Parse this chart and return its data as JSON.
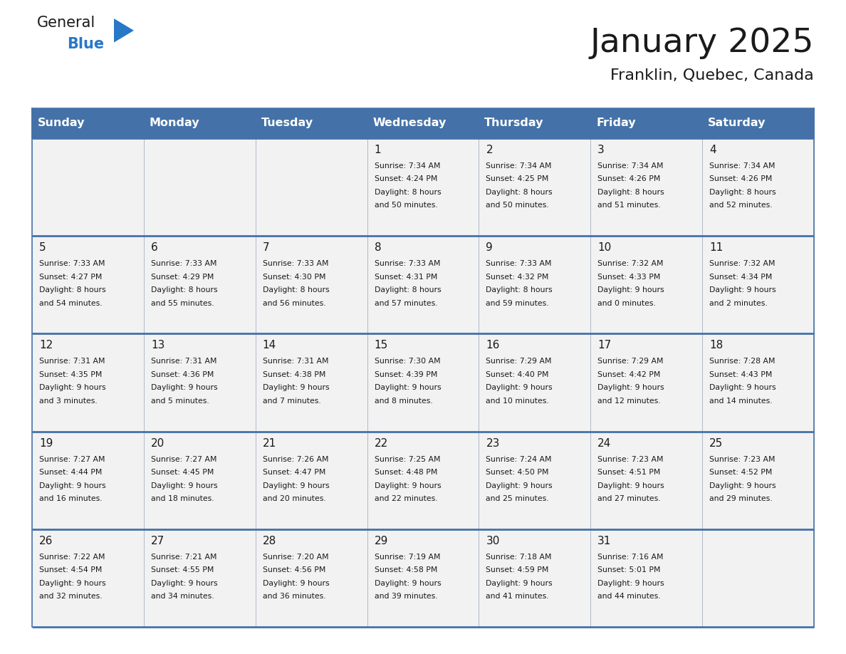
{
  "title": "January 2025",
  "subtitle": "Franklin, Quebec, Canada",
  "header_bg": "#4472a8",
  "cell_bg": "#f2f2f2",
  "row_top_line": "#4472a8",
  "col_sep_color": "#c0c0c0",
  "day_names": [
    "Sunday",
    "Monday",
    "Tuesday",
    "Wednesday",
    "Thursday",
    "Friday",
    "Saturday"
  ],
  "calendar": [
    [
      {
        "day": "",
        "info": ""
      },
      {
        "day": "",
        "info": ""
      },
      {
        "day": "",
        "info": ""
      },
      {
        "day": "1",
        "info": "Sunrise: 7:34 AM\nSunset: 4:24 PM\nDaylight: 8 hours\nand 50 minutes."
      },
      {
        "day": "2",
        "info": "Sunrise: 7:34 AM\nSunset: 4:25 PM\nDaylight: 8 hours\nand 50 minutes."
      },
      {
        "day": "3",
        "info": "Sunrise: 7:34 AM\nSunset: 4:26 PM\nDaylight: 8 hours\nand 51 minutes."
      },
      {
        "day": "4",
        "info": "Sunrise: 7:34 AM\nSunset: 4:26 PM\nDaylight: 8 hours\nand 52 minutes."
      }
    ],
    [
      {
        "day": "5",
        "info": "Sunrise: 7:33 AM\nSunset: 4:27 PM\nDaylight: 8 hours\nand 54 minutes."
      },
      {
        "day": "6",
        "info": "Sunrise: 7:33 AM\nSunset: 4:29 PM\nDaylight: 8 hours\nand 55 minutes."
      },
      {
        "day": "7",
        "info": "Sunrise: 7:33 AM\nSunset: 4:30 PM\nDaylight: 8 hours\nand 56 minutes."
      },
      {
        "day": "8",
        "info": "Sunrise: 7:33 AM\nSunset: 4:31 PM\nDaylight: 8 hours\nand 57 minutes."
      },
      {
        "day": "9",
        "info": "Sunrise: 7:33 AM\nSunset: 4:32 PM\nDaylight: 8 hours\nand 59 minutes."
      },
      {
        "day": "10",
        "info": "Sunrise: 7:32 AM\nSunset: 4:33 PM\nDaylight: 9 hours\nand 0 minutes."
      },
      {
        "day": "11",
        "info": "Sunrise: 7:32 AM\nSunset: 4:34 PM\nDaylight: 9 hours\nand 2 minutes."
      }
    ],
    [
      {
        "day": "12",
        "info": "Sunrise: 7:31 AM\nSunset: 4:35 PM\nDaylight: 9 hours\nand 3 minutes."
      },
      {
        "day": "13",
        "info": "Sunrise: 7:31 AM\nSunset: 4:36 PM\nDaylight: 9 hours\nand 5 minutes."
      },
      {
        "day": "14",
        "info": "Sunrise: 7:31 AM\nSunset: 4:38 PM\nDaylight: 9 hours\nand 7 minutes."
      },
      {
        "day": "15",
        "info": "Sunrise: 7:30 AM\nSunset: 4:39 PM\nDaylight: 9 hours\nand 8 minutes."
      },
      {
        "day": "16",
        "info": "Sunrise: 7:29 AM\nSunset: 4:40 PM\nDaylight: 9 hours\nand 10 minutes."
      },
      {
        "day": "17",
        "info": "Sunrise: 7:29 AM\nSunset: 4:42 PM\nDaylight: 9 hours\nand 12 minutes."
      },
      {
        "day": "18",
        "info": "Sunrise: 7:28 AM\nSunset: 4:43 PM\nDaylight: 9 hours\nand 14 minutes."
      }
    ],
    [
      {
        "day": "19",
        "info": "Sunrise: 7:27 AM\nSunset: 4:44 PM\nDaylight: 9 hours\nand 16 minutes."
      },
      {
        "day": "20",
        "info": "Sunrise: 7:27 AM\nSunset: 4:45 PM\nDaylight: 9 hours\nand 18 minutes."
      },
      {
        "day": "21",
        "info": "Sunrise: 7:26 AM\nSunset: 4:47 PM\nDaylight: 9 hours\nand 20 minutes."
      },
      {
        "day": "22",
        "info": "Sunrise: 7:25 AM\nSunset: 4:48 PM\nDaylight: 9 hours\nand 22 minutes."
      },
      {
        "day": "23",
        "info": "Sunrise: 7:24 AM\nSunset: 4:50 PM\nDaylight: 9 hours\nand 25 minutes."
      },
      {
        "day": "24",
        "info": "Sunrise: 7:23 AM\nSunset: 4:51 PM\nDaylight: 9 hours\nand 27 minutes."
      },
      {
        "day": "25",
        "info": "Sunrise: 7:23 AM\nSunset: 4:52 PM\nDaylight: 9 hours\nand 29 minutes."
      }
    ],
    [
      {
        "day": "26",
        "info": "Sunrise: 7:22 AM\nSunset: 4:54 PM\nDaylight: 9 hours\nand 32 minutes."
      },
      {
        "day": "27",
        "info": "Sunrise: 7:21 AM\nSunset: 4:55 PM\nDaylight: 9 hours\nand 34 minutes."
      },
      {
        "day": "28",
        "info": "Sunrise: 7:20 AM\nSunset: 4:56 PM\nDaylight: 9 hours\nand 36 minutes."
      },
      {
        "day": "29",
        "info": "Sunrise: 7:19 AM\nSunset: 4:58 PM\nDaylight: 9 hours\nand 39 minutes."
      },
      {
        "day": "30",
        "info": "Sunrise: 7:18 AM\nSunset: 4:59 PM\nDaylight: 9 hours\nand 41 minutes."
      },
      {
        "day": "31",
        "info": "Sunrise: 7:16 AM\nSunset: 5:01 PM\nDaylight: 9 hours\nand 44 minutes."
      },
      {
        "day": "",
        "info": ""
      }
    ]
  ],
  "logo_general_color": "#1a1a1a",
  "logo_blue_color": "#2878c8",
  "logo_triangle_color": "#2878c8",
  "title_color": "#1a1a1a",
  "subtitle_color": "#1a1a1a",
  "day_num_color": "#1a1a1a",
  "info_text_color": "#1a1a1a"
}
